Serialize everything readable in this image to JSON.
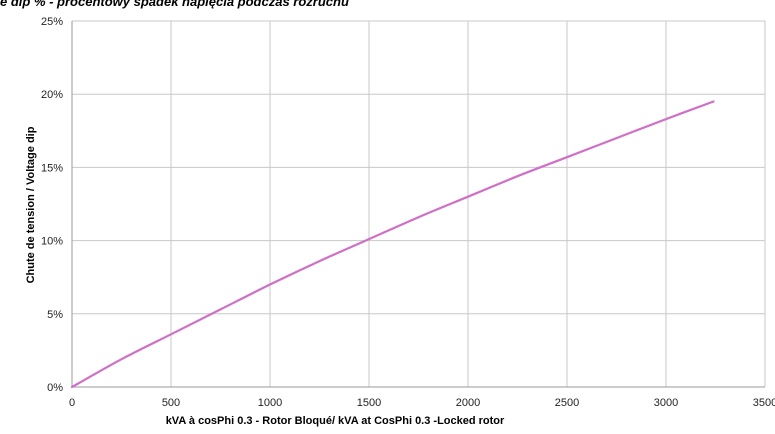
{
  "caption": "e dip % - procentowy spadek napięcia podczas rozruchu",
  "chart_data": {
    "type": "line",
    "xlabel": "kVA à cosPhi 0.3 - Rotor Bloqué/ kVA at CosPhi 0.3 -Locked rotor",
    "ylabel": "Chute de tension / Voltage dip",
    "xlim": [
      0,
      3500
    ],
    "ylim": [
      0,
      25
    ],
    "x_ticks": [
      "0",
      "500",
      "1000",
      "1500",
      "2000",
      "2500",
      "3000",
      "3500"
    ],
    "y_ticks": [
      "0%",
      "5%",
      "10%",
      "15%",
      "20%",
      "25%"
    ],
    "grid": true,
    "series": [
      {
        "color": "#d06fc6",
        "x": [
          0,
          250,
          500,
          750,
          1000,
          1250,
          1500,
          1750,
          2000,
          2250,
          2500,
          2750,
          3000,
          3240
        ],
        "y": [
          0,
          1.9,
          3.6,
          5.3,
          7.0,
          8.6,
          10.1,
          11.6,
          13.0,
          14.4,
          15.7,
          17.0,
          18.3,
          19.5
        ]
      }
    ]
  }
}
